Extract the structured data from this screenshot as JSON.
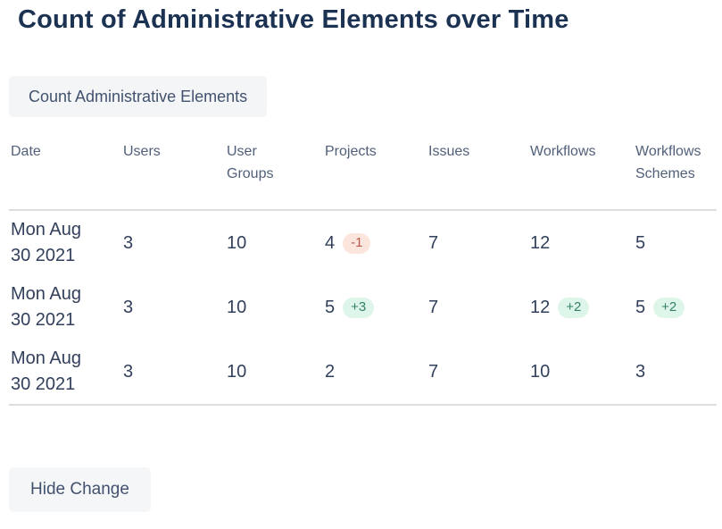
{
  "page": {
    "title": "Count of Administrative Elements over Time"
  },
  "toolbar": {
    "count_button_label": "Count Administrative Elements"
  },
  "actions": {
    "hide_change_label": "Hide Change"
  },
  "colors": {
    "title_text": "#1c3252",
    "button_bg": "#f4f5f7",
    "button_text": "#42526e",
    "header_text": "#505f79",
    "cell_text": "#32405c",
    "divider": "#dcdee2",
    "badge_positive_bg": "#def5e9",
    "badge_positive_text": "#35806a",
    "badge_negative_bg": "#fbe5dd",
    "badge_negative_text": "#b85a4e"
  },
  "table": {
    "columns": [
      "Date",
      "Users",
      "User Groups",
      "Projects",
      "Issues",
      "Workflows",
      "Workflows Schemes"
    ],
    "rows": [
      {
        "date": "Mon Aug 30 2021",
        "users": {
          "value": "3"
        },
        "user_groups": {
          "value": "10"
        },
        "projects": {
          "value": "4",
          "change": "-1"
        },
        "issues": {
          "value": "7"
        },
        "workflows": {
          "value": "12"
        },
        "workflows_schemes": {
          "value": "5"
        }
      },
      {
        "date": "Mon Aug 30 2021",
        "users": {
          "value": "3"
        },
        "user_groups": {
          "value": "10"
        },
        "projects": {
          "value": "5",
          "change": "+3"
        },
        "issues": {
          "value": "7"
        },
        "workflows": {
          "value": "12",
          "change": "+2"
        },
        "workflows_schemes": {
          "value": "5",
          "change": "+2"
        }
      },
      {
        "date": "Mon Aug 30 2021",
        "users": {
          "value": "3"
        },
        "user_groups": {
          "value": "10"
        },
        "projects": {
          "value": "2"
        },
        "issues": {
          "value": "7"
        },
        "workflows": {
          "value": "10"
        },
        "workflows_schemes": {
          "value": "3"
        }
      }
    ]
  }
}
